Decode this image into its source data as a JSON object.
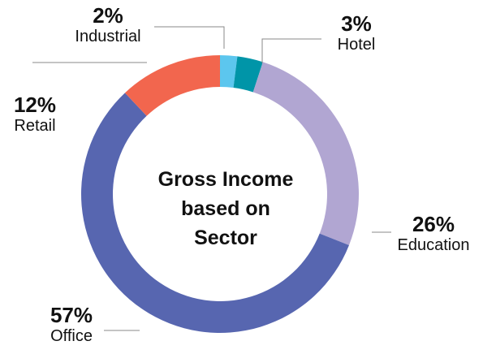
{
  "chart_data": {
    "type": "pie",
    "title": "Gross Income based on Sector",
    "title_lines": [
      "Gross Income",
      "based on",
      "Sector"
    ],
    "donut": true,
    "slices": [
      {
        "label": "Industrial",
        "value": 2,
        "display": "2%",
        "color": "#5cc6ee"
      },
      {
        "label": "Hotel",
        "value": 3,
        "display": "3%",
        "color": "#0095a8"
      },
      {
        "label": "Education",
        "value": 26,
        "display": "26%",
        "color": "#b1a6d2"
      },
      {
        "label": "Office",
        "value": 57,
        "display": "57%",
        "color": "#5766b0"
      },
      {
        "label": "Retail",
        "value": 12,
        "display": "12%",
        "color": "#f2664e"
      }
    ],
    "leader_line_color": "#888888"
  }
}
